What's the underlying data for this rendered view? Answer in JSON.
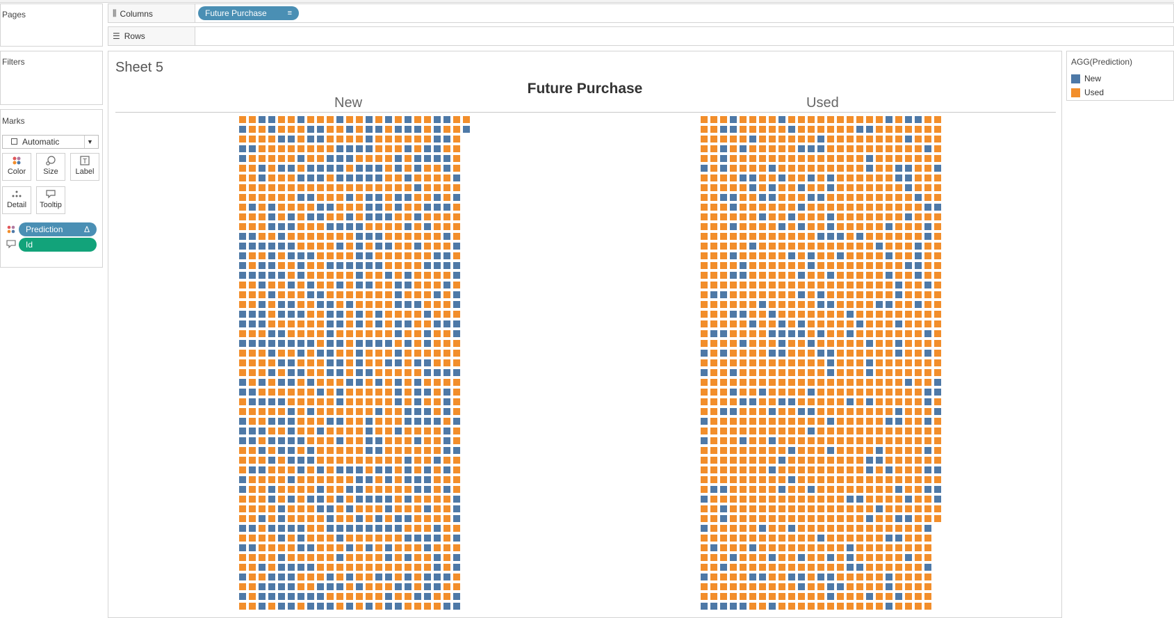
{
  "cards": {
    "pages_title": "Pages",
    "filters_title": "Filters",
    "marks_title": "Marks"
  },
  "shelves": {
    "columns_label": "Columns",
    "rows_label": "Rows",
    "columns_pill": "Future Purchase"
  },
  "marks": {
    "type": "Automatic",
    "buttons": [
      "Color",
      "Size",
      "Label",
      "Detail",
      "Tooltip"
    ],
    "pills": [
      {
        "label": "Prediction",
        "role": "color"
      },
      {
        "label": "Id",
        "role": "tooltip"
      }
    ]
  },
  "view": {
    "sheet_title": "Sheet 5",
    "chart_title": "Future Purchase",
    "column_headers": [
      "New",
      "Used"
    ]
  },
  "legend": {
    "title": "AGG(Prediction)",
    "items": [
      {
        "label": "New",
        "color": "#4e79a7"
      },
      {
        "label": "Used",
        "color": "#f28e2b"
      }
    ]
  },
  "chart_data": {
    "type": "heatmap",
    "title": "Future Purchase",
    "categories": [
      "New",
      "Used"
    ],
    "color_legend": {
      "New": "#4e79a7",
      "Used": "#f28e2b"
    },
    "grids": [
      {
        "category": "New",
        "columns": 23,
        "rows": 51,
        "row1_columns": 24,
        "row2_columns": 24,
        "new_share": 0.38
      },
      {
        "category": "Used",
        "columns": 25,
        "rows": 51,
        "full_rows": 42,
        "short_row_columns": 24,
        "new_share": 0.17
      }
    ]
  }
}
